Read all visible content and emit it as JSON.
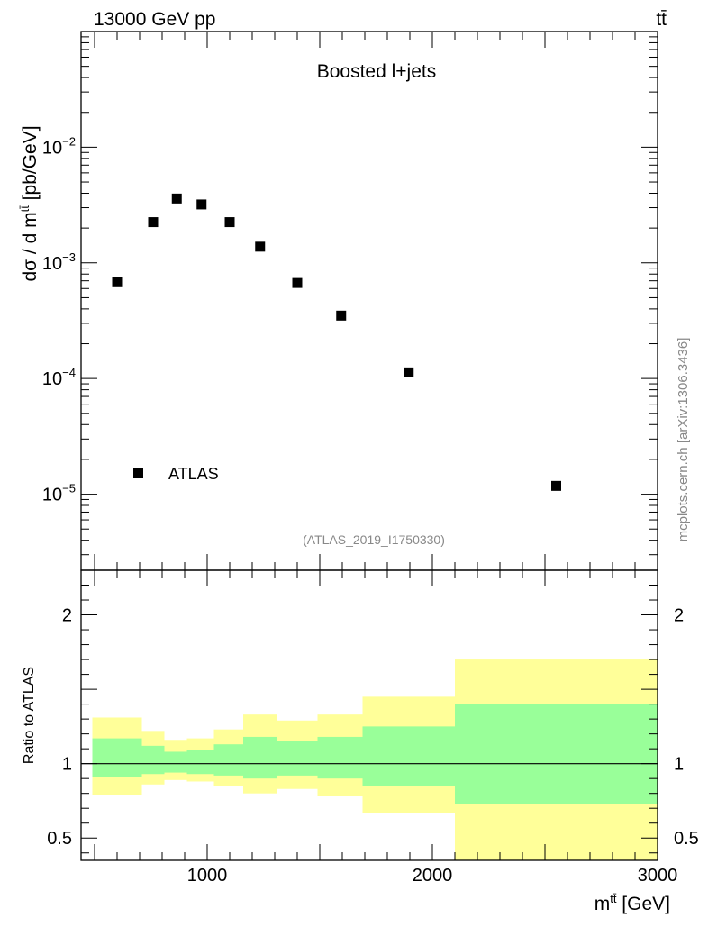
{
  "header": {
    "energy_label": "13000 GeV pp",
    "process_label": "tt̄"
  },
  "watermarks": {
    "side": "mcplots.cern.ch [arXiv:1306.3436]",
    "analysis": "(ATLAS_2019_I1750330)"
  },
  "chart_data": [
    {
      "type": "scatter",
      "title": "Boosted l+jets",
      "ylabel": "dσ / d mtt̄ [pb/GeV]",
      "ylabel_parts": {
        "main": "dσ / d m",
        "sup": "tt̄",
        "unit": " [pb/GeV]"
      },
      "yscale": "log",
      "ylim": [
        2.2e-06,
        0.1
      ],
      "xlim": [
        440,
        3000
      ],
      "y_ticks": [
        {
          "value": 0.01,
          "base": "10",
          "exp": "−2"
        },
        {
          "value": 0.001,
          "base": "10",
          "exp": "−3"
        },
        {
          "value": 0.0001,
          "base": "10",
          "exp": "−4"
        },
        {
          "value": 1e-05,
          "base": "10",
          "exp": "−5"
        }
      ],
      "legend": {
        "label": "ATLAS",
        "placement": "bottom-left"
      },
      "series": [
        {
          "name": "ATLAS",
          "x": [
            600,
            760,
            865,
            975,
            1100,
            1235,
            1400,
            1595,
            1895,
            2550
          ],
          "y": [
            0.00068,
            0.00225,
            0.0036,
            0.0032,
            0.00225,
            0.00138,
            0.00067,
            0.00035,
            0.000113,
            1.18e-05
          ]
        }
      ]
    },
    {
      "type": "area",
      "ylabel": "Ratio to ATLAS",
      "xlabel": "mtt̄ [GeV]",
      "xlabel_parts": {
        "main": "m",
        "sup": "tt̄",
        "unit": " [GeV]"
      },
      "xlim": [
        440,
        3000
      ],
      "ylim": [
        0.35,
        2.3
      ],
      "x_ticks": [
        1000,
        2000,
        3000
      ],
      "y_ticks_left": [
        0.5,
        1,
        2
      ],
      "y_ticks_right": [
        0.5,
        1,
        2
      ],
      "reference": 1,
      "bins": [
        {
          "lo": 490,
          "hi": 710,
          "inner_lo": 0.91,
          "inner_hi": 1.17,
          "outer_lo": 0.79,
          "outer_hi": 1.31
        },
        {
          "lo": 710,
          "hi": 810,
          "inner_lo": 0.93,
          "inner_hi": 1.12,
          "outer_lo": 0.86,
          "outer_hi": 1.22
        },
        {
          "lo": 810,
          "hi": 910,
          "inner_lo": 0.94,
          "inner_hi": 1.08,
          "outer_lo": 0.89,
          "outer_hi": 1.16
        },
        {
          "lo": 910,
          "hi": 1030,
          "inner_lo": 0.93,
          "inner_hi": 1.09,
          "outer_lo": 0.88,
          "outer_hi": 1.17
        },
        {
          "lo": 1030,
          "hi": 1160,
          "inner_lo": 0.92,
          "inner_hi": 1.13,
          "outer_lo": 0.85,
          "outer_hi": 1.23
        },
        {
          "lo": 1160,
          "hi": 1310,
          "inner_lo": 0.9,
          "inner_hi": 1.18,
          "outer_lo": 0.8,
          "outer_hi": 1.33
        },
        {
          "lo": 1310,
          "hi": 1490,
          "inner_lo": 0.92,
          "inner_hi": 1.15,
          "outer_lo": 0.83,
          "outer_hi": 1.29
        },
        {
          "lo": 1490,
          "hi": 1690,
          "inner_lo": 0.9,
          "inner_hi": 1.18,
          "outer_lo": 0.78,
          "outer_hi": 1.33
        },
        {
          "lo": 1690,
          "hi": 2100,
          "inner_lo": 0.85,
          "inner_hi": 1.25,
          "outer_lo": 0.67,
          "outer_hi": 1.45
        },
        {
          "lo": 2100,
          "hi": 3000,
          "inner_lo": 0.73,
          "inner_hi": 1.4,
          "outer_lo": 0.35,
          "outer_hi": 1.7
        }
      ]
    }
  ]
}
